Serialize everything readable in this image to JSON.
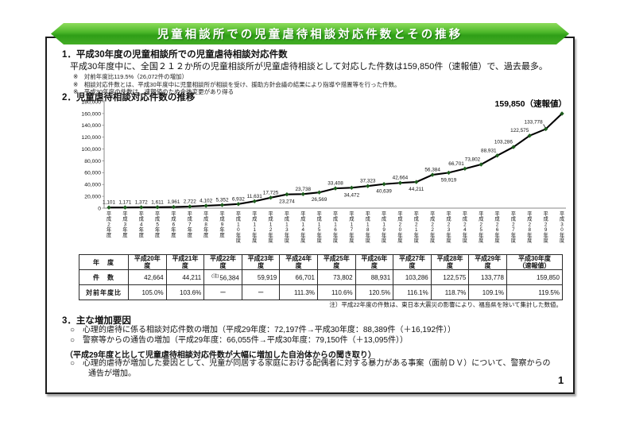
{
  "banner": {
    "title": "児童相談所での児童虐待相談対応件数とその推移"
  },
  "section1": {
    "heading": "1．平成30年度の児童相談所での児童虐待相談対応件数",
    "body": "平成30年度中に、全国２１２か所の児童相談所が児童虐待相談として対応した件数は159,850件（速報値）で、過去最多。",
    "notes": [
      "※　対前年度比119.5%（26,072件の増加）",
      "※　相談対応件数とは、平成30年度中に児童相談所が相談を受け、援助方針会議の結果により指導や措置等を行った件数。",
      "※　平成30年度の件数は、速報値のため今後変更があり得る"
    ]
  },
  "section2": {
    "heading": "2．児童虐待相談対応件数の推移"
  },
  "chart_data": {
    "type": "line",
    "title": "児童虐待相談対応件数の推移",
    "x": [
      "平成2年度",
      "平成3年度",
      "平成4年度",
      "平成5年度",
      "平成6年度",
      "平成7年度",
      "平成8年度",
      "平成9年度",
      "平成10年度",
      "平成11年度",
      "平成12年度",
      "平成13年度",
      "平成14年度",
      "平成15年度",
      "平成16年度",
      "平成17年度",
      "平成18年度",
      "平成19年度",
      "平成20年度",
      "平成21年度",
      "平成22年度",
      "平成23年度",
      "平成24年度",
      "平成25年度",
      "平成26年度",
      "平成27年度",
      "平成28年度",
      "平成29年度",
      "平成30年度"
    ],
    "values": [
      1101,
      1171,
      1372,
      1611,
      1961,
      2722,
      4102,
      5352,
      6932,
      11631,
      17725,
      23274,
      23738,
      26569,
      33408,
      34472,
      37323,
      40639,
      42664,
      44211,
      56384,
      59919,
      66701,
      73802,
      88931,
      103286,
      122575,
      133778,
      159850
    ],
    "label_positions": [
      "above",
      "above",
      "above",
      "above",
      "above",
      "above",
      "above",
      "above",
      "above",
      "above",
      "above",
      "below",
      "above",
      "below",
      "above",
      "below",
      "above",
      "below",
      "above",
      "below",
      "above",
      "below",
      "above-left",
      "above-left",
      "above-left",
      "above-left",
      "above-left",
      "leader",
      "final"
    ],
    "final_label": "159,850（速報値）",
    "ylim": [
      0,
      180000
    ],
    "ytick_labels": [
      "0",
      "20,000",
      "40,000",
      "60,000",
      "80,000",
      "100,000",
      "120,000",
      "140,000",
      "160,000",
      "180,000"
    ],
    "grid": "off",
    "legend": "none",
    "line_color": "#000000",
    "marker_color": "#1d5c1d",
    "axis_color": "#8a8a8a"
  },
  "table": {
    "row_headers": [
      "年　度",
      "件　数",
      "対前年度比"
    ],
    "columns": [
      {
        "year": "平成20年度",
        "count": "42,664",
        "ratio": "105.0%"
      },
      {
        "year": "平成21年度",
        "count": "44,211",
        "ratio": "103.6%"
      },
      {
        "year": "平成22年度",
        "count": "56,384",
        "count_note": "(注)",
        "ratio": "ー"
      },
      {
        "year": "平成23年度",
        "count": "59,919",
        "ratio": "ー"
      },
      {
        "year": "平成24年度",
        "count": "66,701",
        "ratio": "111.3%"
      },
      {
        "year": "平成25年度",
        "count": "73,802",
        "ratio": "110.6%"
      },
      {
        "year": "平成26年度",
        "count": "88,931",
        "ratio": "120.5%"
      },
      {
        "year": "平成27年度",
        "count": "103,286",
        "ratio": "116.1%"
      },
      {
        "year": "平成28年度",
        "count": "122,575",
        "ratio": "118.7%"
      },
      {
        "year": "平成29年度",
        "count": "133,778",
        "ratio": "109.1%"
      },
      {
        "year": "平成30年度\n（速報値）",
        "count": "159,850",
        "ratio": "119.5%"
      }
    ],
    "note": "注）平成22年度の件数は、東日本大震災の影響により、福島県を除いて集計した数値。"
  },
  "section3": {
    "heading": "3．主な増加要因",
    "items": [
      "○　心理的虐待に係る相談対応件数の増加（平成29年度：72,197件→平成30年度：88,389件（＋16,192件））",
      "○　警察等からの通告の増加（平成29年度：66,055件→平成30年度：79,150件（＋13,095件））"
    ],
    "subheading": "（平成29年度と比して児童虐待相談対応件数が大幅に増加した自治体からの聞き取り）",
    "sub_items": [
      "○　心理的虐待が増加した要因として、児童が同居する家庭における配偶者に対する暴力がある事案（面前ＤＶ）について、警察からの通告が増加。"
    ]
  },
  "page_number": "1"
}
